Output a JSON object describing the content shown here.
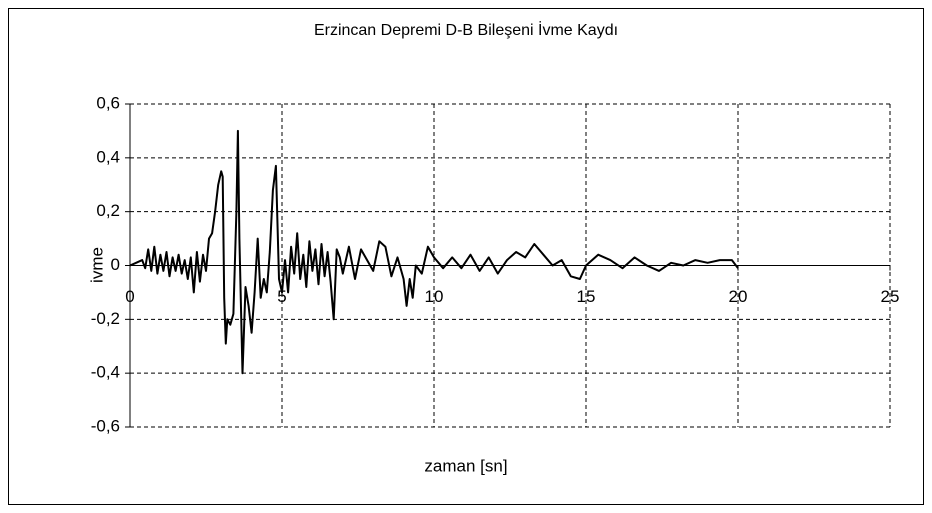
{
  "chart_data": {
    "type": "line",
    "title": "Erzincan Depremi D-B Bileşeni İvme Kaydı",
    "xlabel": "zaman [sn]",
    "ylabel": "ivme",
    "x": [
      0,
      0.2,
      0.4,
      0.5,
      0.6,
      0.7,
      0.8,
      0.9,
      1.0,
      1.1,
      1.2,
      1.3,
      1.4,
      1.5,
      1.6,
      1.7,
      1.8,
      1.9,
      2.0,
      2.1,
      2.2,
      2.3,
      2.4,
      2.5,
      2.6,
      2.7,
      2.8,
      2.9,
      3.0,
      3.05,
      3.1,
      3.15,
      3.2,
      3.3,
      3.4,
      3.5,
      3.55,
      3.6,
      3.7,
      3.8,
      3.9,
      4.0,
      4.1,
      4.2,
      4.3,
      4.4,
      4.5,
      4.6,
      4.7,
      4.8,
      4.9,
      5.0,
      5.1,
      5.2,
      5.3,
      5.4,
      5.5,
      5.6,
      5.7,
      5.8,
      5.9,
      6.0,
      6.1,
      6.2,
      6.3,
      6.4,
      6.5,
      6.6,
      6.7,
      6.8,
      6.9,
      7.0,
      7.2,
      7.4,
      7.6,
      7.8,
      8.0,
      8.2,
      8.4,
      8.6,
      8.8,
      9.0,
      9.1,
      9.2,
      9.3,
      9.4,
      9.6,
      9.8,
      10.0,
      10.3,
      10.6,
      10.9,
      11.2,
      11.5,
      11.8,
      12.1,
      12.4,
      12.7,
      13.0,
      13.3,
      13.6,
      13.9,
      14.2,
      14.5,
      14.8,
      15.0,
      15.4,
      15.8,
      16.2,
      16.6,
      17.0,
      17.4,
      17.8,
      18.2,
      18.6,
      19.0,
      19.4,
      19.8,
      20.0
    ],
    "series": [
      {
        "color": "#000000",
        "values": [
          0,
          0.01,
          0.02,
          -0.01,
          0.06,
          -0.02,
          0.07,
          -0.03,
          0.04,
          -0.02,
          0.05,
          -0.04,
          0.03,
          -0.02,
          0.04,
          -0.03,
          0.02,
          -0.05,
          0.03,
          -0.1,
          0.05,
          -0.06,
          0.04,
          -0.02,
          0.1,
          0.12,
          0.2,
          0.3,
          0.35,
          0.33,
          -0.12,
          -0.29,
          -0.2,
          -0.22,
          -0.18,
          0.2,
          0.5,
          0.1,
          -0.4,
          -0.08,
          -0.15,
          -0.25,
          -0.1,
          0.1,
          -0.12,
          -0.05,
          -0.1,
          0.05,
          0.28,
          0.37,
          -0.05,
          -0.1,
          0.02,
          -0.1,
          0.07,
          -0.03,
          0.12,
          -0.05,
          0.04,
          -0.08,
          0.09,
          -0.02,
          0.06,
          -0.07,
          0.08,
          -0.04,
          0.05,
          -0.06,
          -0.2,
          0.06,
          0.03,
          -0.03,
          0.07,
          -0.05,
          0.06,
          0.02,
          -0.02,
          0.09,
          0.07,
          -0.04,
          0.03,
          -0.05,
          -0.15,
          -0.05,
          -0.12,
          0,
          -0.03,
          0.07,
          0.03,
          -0.01,
          0.03,
          -0.01,
          0.04,
          -0.02,
          0.03,
          -0.03,
          0.02,
          0.05,
          0.03,
          0.08,
          0.04,
          0,
          0.02,
          -0.04,
          -0.05,
          0,
          0.04,
          0.02,
          -0.01,
          0.03,
          0,
          -0.02,
          0.01,
          0,
          0.02,
          0.01,
          0.02,
          0.02,
          -0.01
        ]
      }
    ],
    "xlim": [
      0,
      25
    ],
    "xticks": [
      0,
      5,
      10,
      15,
      20,
      25
    ],
    "ylim": [
      -0.6,
      0.6
    ],
    "yticks": [
      {
        "value": -0.6,
        "label": "-0,6"
      },
      {
        "value": -0.4,
        "label": "-0,4"
      },
      {
        "value": -0.2,
        "label": "-0,2"
      },
      0,
      {
        "value": 0.2,
        "label": "0,2"
      },
      {
        "value": 0.4,
        "label": "0,4"
      },
      {
        "value": 0.6,
        "label": "0,6"
      }
    ],
    "grid": true
  }
}
